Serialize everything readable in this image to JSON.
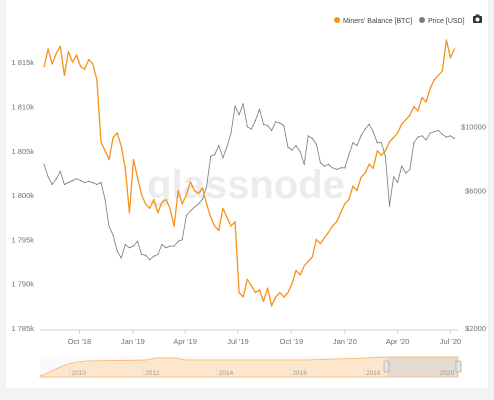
{
  "brand": {
    "watermark": "glassnode"
  },
  "legend": {
    "items": [
      {
        "label": "Miners' Balance [BTC]",
        "color": "#f7931a"
      },
      {
        "label": "Price [USD]",
        "color": "#7a7a7a"
      }
    ],
    "camera_icon": "camera-icon"
  },
  "chart_data": {
    "type": "line",
    "xlabel": "",
    "ylabel": "",
    "x_ticks": [
      "Oct '18",
      "Jan '19",
      "Apr '19",
      "Jul '19",
      "Oct '19",
      "Jan '20",
      "Apr '20",
      "Jul '20"
    ],
    "y_left_ticks": [
      "1 785k",
      "1 790k",
      "1 795k",
      "1 800k",
      "1 805k",
      "1 810k",
      "1 815k"
    ],
    "y_right_ticks": [
      "$2000",
      "$6000",
      "$10000"
    ],
    "y_left_range": [
      1785000,
      1817500
    ],
    "y_right_scale": "log",
    "y_right_range": [
      2000,
      20000
    ],
    "grid": false,
    "legend_position": "top-right",
    "series": [
      {
        "name": "Miners' Balance [BTC]",
        "axis": "left",
        "color": "#f7931a",
        "x": [
          "2018-08-01",
          "2018-08-08",
          "2018-08-15",
          "2018-08-22",
          "2018-08-29",
          "2018-09-05",
          "2018-09-12",
          "2018-09-19",
          "2018-09-26",
          "2018-10-03",
          "2018-10-10",
          "2018-10-17",
          "2018-10-24",
          "2018-10-31",
          "2018-11-07",
          "2018-11-14",
          "2018-11-21",
          "2018-11-28",
          "2018-12-05",
          "2018-12-12",
          "2018-12-19",
          "2018-12-26",
          "2019-01-02",
          "2019-01-09",
          "2019-01-16",
          "2019-01-23",
          "2019-01-30",
          "2019-02-06",
          "2019-02-13",
          "2019-02-20",
          "2019-02-27",
          "2019-03-06",
          "2019-03-13",
          "2019-03-20",
          "2019-03-27",
          "2019-04-03",
          "2019-04-10",
          "2019-04-17",
          "2019-04-24",
          "2019-05-01",
          "2019-05-08",
          "2019-05-15",
          "2019-05-22",
          "2019-05-29",
          "2019-06-05",
          "2019-06-12",
          "2019-06-19",
          "2019-06-26",
          "2019-07-03",
          "2019-07-10",
          "2019-07-17",
          "2019-07-24",
          "2019-07-31",
          "2019-08-07",
          "2019-08-14",
          "2019-08-21",
          "2019-08-28",
          "2019-09-04",
          "2019-09-11",
          "2019-09-18",
          "2019-09-25",
          "2019-10-02",
          "2019-10-09",
          "2019-10-16",
          "2019-10-23",
          "2019-10-30",
          "2019-11-06",
          "2019-11-13",
          "2019-11-20",
          "2019-11-27",
          "2019-12-04",
          "2019-12-11",
          "2019-12-18",
          "2019-12-25",
          "2020-01-01",
          "2020-01-08",
          "2020-01-15",
          "2020-01-22",
          "2020-01-29",
          "2020-02-05",
          "2020-02-12",
          "2020-02-19",
          "2020-02-26",
          "2020-03-04",
          "2020-03-11",
          "2020-03-18",
          "2020-03-25",
          "2020-04-01",
          "2020-04-08",
          "2020-04-15",
          "2020-04-22",
          "2020-04-29",
          "2020-05-06",
          "2020-05-13",
          "2020-05-20",
          "2020-05-27",
          "2020-06-03",
          "2020-06-10",
          "2020-06-17",
          "2020-06-24",
          "2020-07-01",
          "2020-07-08"
        ],
        "values": [
          1814500,
          1816500,
          1814800,
          1816000,
          1816800,
          1813500,
          1816200,
          1815000,
          1815800,
          1814500,
          1814200,
          1815300,
          1814800,
          1813000,
          1806000,
          1805000,
          1804000,
          1806500,
          1807000,
          1805500,
          1803000,
          1798000,
          1804000,
          1802000,
          1800000,
          1799000,
          1798500,
          1799500,
          1798000,
          1799200,
          1799500,
          1798500,
          1796500,
          1800500,
          1799000,
          1800000,
          1801500,
          1800500,
          1800200,
          1800800,
          1799000,
          1797500,
          1796500,
          1796000,
          1798500,
          1797500,
          1796500,
          1797000,
          1789000,
          1788500,
          1790500,
          1789800,
          1789000,
          1789300,
          1788000,
          1789500,
          1787500,
          1788500,
          1789000,
          1788500,
          1789000,
          1790000,
          1791500,
          1791000,
          1792000,
          1792500,
          1793000,
          1795000,
          1794500,
          1795200,
          1795800,
          1796500,
          1797000,
          1798000,
          1799000,
          1799500,
          1801000,
          1800500,
          1802000,
          1802500,
          1803500,
          1803000,
          1805000,
          1804500,
          1805000,
          1806000,
          1806500,
          1807000,
          1808000,
          1808500,
          1809000,
          1810000,
          1809500,
          1811000,
          1810500,
          1812000,
          1813000,
          1813500,
          1814000,
          1817500,
          1815500,
          1816500
        ]
      },
      {
        "name": "Price [USD]",
        "axis": "right",
        "color": "#7a7a7a",
        "x": [
          "2018-08-01",
          "2018-08-08",
          "2018-08-15",
          "2018-08-22",
          "2018-08-29",
          "2018-09-05",
          "2018-09-12",
          "2018-09-19",
          "2018-09-26",
          "2018-10-03",
          "2018-10-10",
          "2018-10-17",
          "2018-10-24",
          "2018-10-31",
          "2018-11-07",
          "2018-11-14",
          "2018-11-21",
          "2018-11-28",
          "2018-12-05",
          "2018-12-12",
          "2018-12-19",
          "2018-12-26",
          "2019-01-02",
          "2019-01-09",
          "2019-01-16",
          "2019-01-23",
          "2019-01-30",
          "2019-02-06",
          "2019-02-13",
          "2019-02-20",
          "2019-02-27",
          "2019-03-06",
          "2019-03-13",
          "2019-03-20",
          "2019-03-27",
          "2019-04-03",
          "2019-04-10",
          "2019-04-17",
          "2019-04-24",
          "2019-05-01",
          "2019-05-08",
          "2019-05-15",
          "2019-05-22",
          "2019-05-29",
          "2019-06-05",
          "2019-06-12",
          "2019-06-19",
          "2019-06-26",
          "2019-07-03",
          "2019-07-10",
          "2019-07-17",
          "2019-07-24",
          "2019-07-31",
          "2019-08-07",
          "2019-08-14",
          "2019-08-21",
          "2019-08-28",
          "2019-09-04",
          "2019-09-11",
          "2019-09-18",
          "2019-09-25",
          "2019-10-02",
          "2019-10-09",
          "2019-10-16",
          "2019-10-23",
          "2019-10-30",
          "2019-11-06",
          "2019-11-13",
          "2019-11-20",
          "2019-11-27",
          "2019-12-04",
          "2019-12-11",
          "2019-12-18",
          "2019-12-25",
          "2020-01-01",
          "2020-01-08",
          "2020-01-15",
          "2020-01-22",
          "2020-01-29",
          "2020-02-05",
          "2020-02-12",
          "2020-02-19",
          "2020-02-26",
          "2020-03-04",
          "2020-03-11",
          "2020-03-18",
          "2020-03-25",
          "2020-04-01",
          "2020-04-08",
          "2020-04-15",
          "2020-04-22",
          "2020-04-29",
          "2020-05-06",
          "2020-05-13",
          "2020-05-20",
          "2020-05-27",
          "2020-06-03",
          "2020-06-10",
          "2020-06-17",
          "2020-06-24",
          "2020-07-01",
          "2020-07-08"
        ],
        "values": [
          7400,
          6700,
          6300,
          6600,
          7000,
          6300,
          6400,
          6500,
          6600,
          6500,
          6400,
          6450,
          6400,
          6300,
          6400,
          5600,
          4500,
          4200,
          3700,
          3500,
          3900,
          3800,
          3850,
          4000,
          3600,
          3580,
          3450,
          3550,
          3600,
          3900,
          3800,
          3850,
          3850,
          4000,
          4050,
          4900,
          5100,
          5250,
          5400,
          5600,
          6200,
          7900,
          8000,
          8600,
          7800,
          8500,
          9500,
          11800,
          11000,
          12000,
          10000,
          9800,
          10500,
          11500,
          10200,
          10100,
          9700,
          10400,
          10300,
          10100,
          8500,
          8300,
          8600,
          8200,
          7400,
          9300,
          9100,
          8700,
          7500,
          7300,
          7400,
          7200,
          7100,
          7200,
          7200,
          8000,
          8800,
          8600,
          9300,
          9800,
          10200,
          9600,
          8800,
          8800,
          7900,
          5300,
          6700,
          6400,
          7300,
          6900,
          7100,
          8800,
          9200,
          9300,
          9000,
          9500,
          9600,
          9700,
          9400,
          9200,
          9300,
          9100
        ]
      }
    ],
    "navigator": {
      "x_ticks": [
        "2010",
        "2012",
        "2014",
        "2016",
        "2018",
        "2020"
      ]
    }
  }
}
